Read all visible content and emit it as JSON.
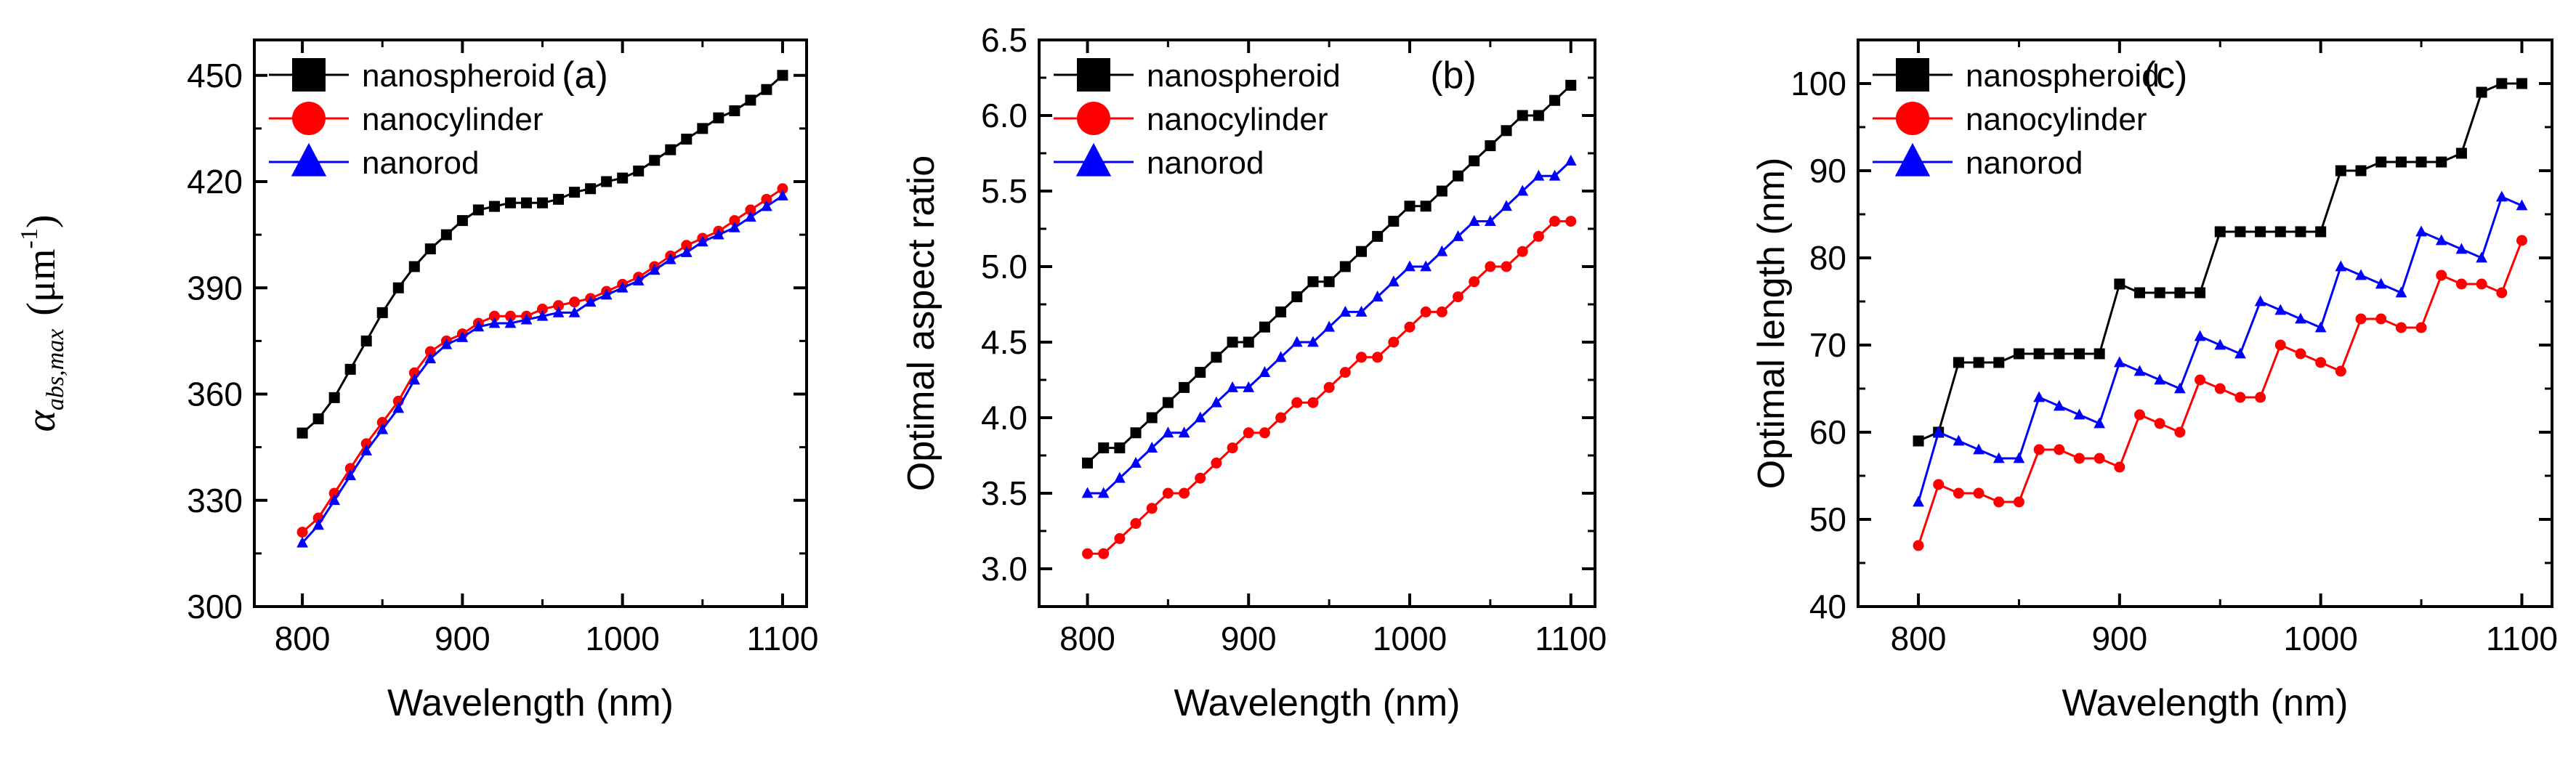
{
  "colors": {
    "series_black": "#000000",
    "series_red": "#ff0000",
    "series_blue": "#0000ff",
    "axis": "#000000"
  },
  "chart_data": [
    {
      "type": "line",
      "panel_label": "(a)",
      "xlabel": "Wavelength (nm)",
      "ylabel": {
        "symbol": "α",
        "subscript": "abs,max",
        "unit_open": "(μm",
        "unit_sup": "-1",
        "unit_close": ")"
      },
      "xlim": [
        770,
        1115
      ],
      "ylim": [
        300,
        460
      ],
      "xticks": [
        800,
        900,
        1000,
        1100
      ],
      "xtick_labels": [
        "800",
        "900",
        "1000",
        "1100"
      ],
      "yticks": [
        300,
        330,
        360,
        390,
        420,
        450
      ],
      "ytick_labels": [
        "300",
        "330",
        "360",
        "390",
        "420",
        "450"
      ],
      "x": [
        800,
        810,
        820,
        830,
        840,
        850,
        860,
        870,
        880,
        890,
        900,
        910,
        920,
        930,
        940,
        950,
        960,
        970,
        980,
        990,
        1000,
        1010,
        1020,
        1030,
        1040,
        1050,
        1060,
        1070,
        1080,
        1090,
        1100
      ],
      "legend": [
        "nanospheroid",
        "nanocylinder",
        "nanorod"
      ],
      "series": [
        {
          "name": "nanospheroid",
          "color": "#000000",
          "marker": "square",
          "values": [
            349,
            353,
            359,
            367,
            375,
            383,
            390,
            396,
            401,
            405,
            409,
            412,
            413,
            414,
            414,
            414,
            415,
            417,
            418,
            420,
            421,
            423,
            426,
            429,
            432,
            435,
            438,
            440,
            443,
            446,
            450
          ]
        },
        {
          "name": "nanocylinder",
          "color": "#ff0000",
          "marker": "circle",
          "values": [
            321,
            325,
            332,
            339,
            346,
            352,
            358,
            366,
            372,
            375,
            377,
            380,
            382,
            382,
            382,
            384,
            385,
            386,
            387,
            389,
            391,
            393,
            396,
            399,
            402,
            404,
            406,
            409,
            412,
            415,
            418
          ]
        },
        {
          "name": "nanorod",
          "color": "#0000ff",
          "marker": "triangle",
          "values": [
            318,
            323,
            330,
            337,
            344,
            350,
            356,
            364,
            370,
            374,
            376,
            379,
            380,
            380,
            381,
            382,
            383,
            383,
            386,
            388,
            390,
            392,
            395,
            398,
            400,
            403,
            405,
            407,
            410,
            413,
            416
          ]
        }
      ]
    },
    {
      "type": "line",
      "panel_label": "(b)",
      "xlabel": "Wavelength (nm)",
      "ylabel": "Optimal aspect ratio",
      "xlim": [
        770,
        1115
      ],
      "ylim": [
        2.75,
        6.5
      ],
      "xticks": [
        800,
        900,
        1000,
        1100
      ],
      "xtick_labels": [
        "800",
        "900",
        "1000",
        "1100"
      ],
      "yticks": [
        3.0,
        3.5,
        4.0,
        4.5,
        5.0,
        5.5,
        6.0,
        6.5
      ],
      "ytick_labels": [
        "3.0",
        "3.5",
        "4.0",
        "4.5",
        "5.0",
        "5.5",
        "6.0",
        "6.5"
      ],
      "x": [
        800,
        810,
        820,
        830,
        840,
        850,
        860,
        870,
        880,
        890,
        900,
        910,
        920,
        930,
        940,
        950,
        960,
        970,
        980,
        990,
        1000,
        1010,
        1020,
        1030,
        1040,
        1050,
        1060,
        1070,
        1080,
        1090,
        1100
      ],
      "legend": [
        "nanospheroid",
        "nanocylinder",
        "nanorod"
      ],
      "series": [
        {
          "name": "nanospheroid",
          "color": "#000000",
          "marker": "square",
          "values": [
            3.7,
            3.8,
            3.8,
            3.9,
            4.0,
            4.1,
            4.2,
            4.3,
            4.4,
            4.5,
            4.5,
            4.6,
            4.7,
            4.8,
            4.9,
            4.9,
            5.0,
            5.1,
            5.2,
            5.3,
            5.4,
            5.4,
            5.5,
            5.6,
            5.7,
            5.8,
            5.9,
            6.0,
            6.0,
            6.1,
            6.2
          ]
        },
        {
          "name": "nanocylinder",
          "color": "#ff0000",
          "marker": "circle",
          "values": [
            3.1,
            3.1,
            3.2,
            3.3,
            3.4,
            3.5,
            3.5,
            3.6,
            3.7,
            3.8,
            3.9,
            3.9,
            4.0,
            4.1,
            4.1,
            4.2,
            4.3,
            4.4,
            4.4,
            4.5,
            4.6,
            4.7,
            4.7,
            4.8,
            4.9,
            5.0,
            5.0,
            5.1,
            5.2,
            5.3,
            5.3
          ]
        },
        {
          "name": "nanorod",
          "color": "#0000ff",
          "marker": "triangle",
          "values": [
            3.5,
            3.5,
            3.6,
            3.7,
            3.8,
            3.9,
            3.9,
            4.0,
            4.1,
            4.2,
            4.2,
            4.3,
            4.4,
            4.5,
            4.5,
            4.6,
            4.7,
            4.7,
            4.8,
            4.9,
            5.0,
            5.0,
            5.1,
            5.2,
            5.3,
            5.3,
            5.4,
            5.5,
            5.6,
            5.6,
            5.7
          ]
        }
      ]
    },
    {
      "type": "line",
      "panel_label": "(c)",
      "xlabel": "Wavelength (nm)",
      "ylabel": "Optimal length (nm)",
      "xlim": [
        770,
        1115
      ],
      "ylim": [
        40,
        105
      ],
      "xticks": [
        800,
        900,
        1000,
        1100
      ],
      "xtick_labels": [
        "800",
        "900",
        "1000",
        "1100"
      ],
      "yticks": [
        40,
        50,
        60,
        70,
        80,
        90,
        100
      ],
      "ytick_labels": [
        "40",
        "50",
        "60",
        "70",
        "80",
        "90",
        "100"
      ],
      "x": [
        800,
        810,
        820,
        830,
        840,
        850,
        860,
        870,
        880,
        890,
        900,
        910,
        920,
        930,
        940,
        950,
        960,
        970,
        980,
        990,
        1000,
        1010,
        1020,
        1030,
        1040,
        1050,
        1060,
        1070,
        1080,
        1090,
        1100
      ],
      "legend": [
        "nanospheroid",
        "nanocylinder",
        "nanorod"
      ],
      "series": [
        {
          "name": "nanospheroid",
          "color": "#000000",
          "marker": "square",
          "values": [
            59,
            60,
            68,
            68,
            68,
            69,
            69,
            69,
            69,
            69,
            77,
            76,
            76,
            76,
            76,
            83,
            83,
            83,
            83,
            83,
            83,
            90,
            90,
            91,
            91,
            91,
            91,
            92,
            99,
            100,
            100
          ]
        },
        {
          "name": "nanocylinder",
          "color": "#ff0000",
          "marker": "circle",
          "values": [
            47,
            54,
            53,
            53,
            52,
            52,
            58,
            58,
            57,
            57,
            56,
            62,
            61,
            60,
            66,
            65,
            64,
            64,
            70,
            69,
            68,
            67,
            73,
            73,
            72,
            72,
            78,
            77,
            77,
            76,
            82
          ]
        },
        {
          "name": "nanorod",
          "color": "#0000ff",
          "marker": "triangle",
          "values": [
            52,
            60,
            59,
            58,
            57,
            57,
            64,
            63,
            62,
            61,
            68,
            67,
            66,
            65,
            71,
            70,
            69,
            75,
            74,
            73,
            72,
            79,
            78,
            77,
            76,
            83,
            82,
            81,
            80,
            87,
            86
          ]
        }
      ]
    }
  ]
}
